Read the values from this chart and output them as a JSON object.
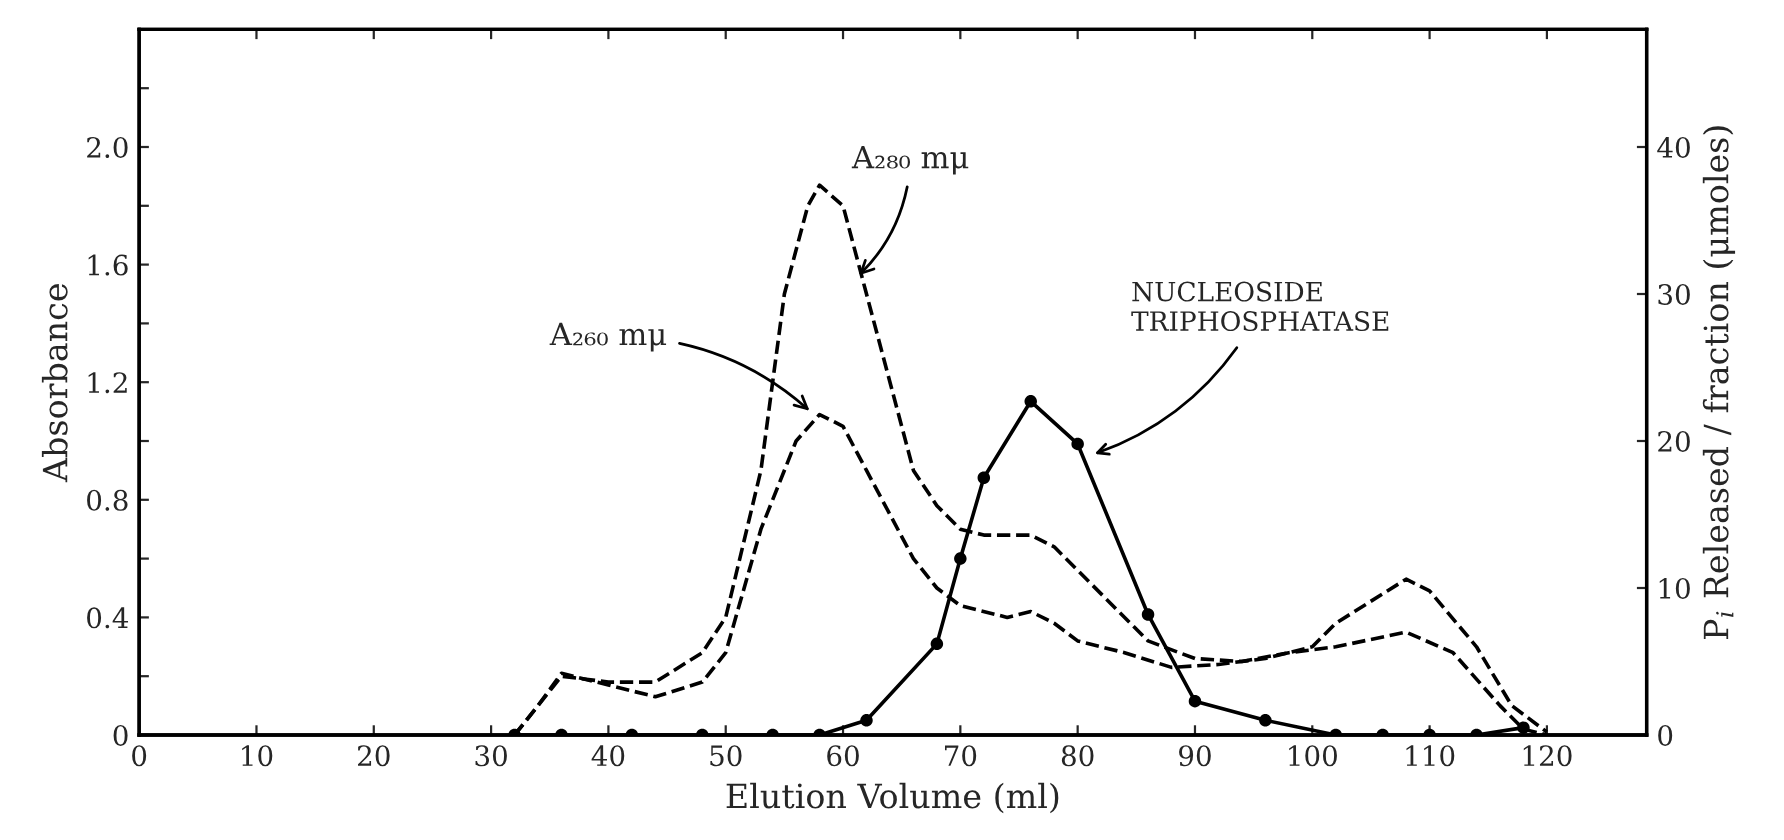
{
  "chart_data": {
    "type": "line",
    "xlabel": "Elution Volume (ml)",
    "ylabel": "Absorbance",
    "y2label": "P$_{i}$ Released / fraction (μmoles)",
    "xlim": [
      0,
      128.5
    ],
    "xticks": [
      0,
      10,
      20,
      30,
      40,
      50,
      60,
      70,
      80,
      90,
      100,
      110,
      120
    ],
    "ylim": [
      0,
      2.4
    ],
    "yticks": [
      0,
      {
        "value": 0.2,
        "label": null
      },
      0.4,
      {
        "value": 0.6,
        "label": null
      },
      0.8,
      {
        "value": 1.0,
        "label": null
      },
      1.2,
      {
        "value": 1.4,
        "label": null
      },
      1.6,
      {
        "value": 1.8,
        "label": null
      },
      {
        "value": 2.0,
        "label": "2.0"
      },
      {
        "value": 2.2,
        "label": null
      }
    ],
    "y2lim": [
      0,
      48
    ],
    "y2ticks": [
      0,
      10,
      20,
      30,
      40
    ],
    "grid": false,
    "legend": false,
    "series": [
      {
        "color": "#000000",
        "line_style": "dashed",
        "marker": "none",
        "x": [
          32,
          34,
          36,
          40,
          44,
          48,
          50,
          53,
          55,
          57,
          58,
          60,
          62,
          64,
          66,
          68,
          70,
          72,
          76,
          78,
          82,
          86,
          90,
          94,
          98,
          102,
          108,
          112,
          116,
          118,
          120
        ],
        "values": [
          0,
          0.1,
          0.2,
          0.18,
          0.18,
          0.28,
          0.4,
          0.9,
          1.5,
          1.8,
          1.87,
          1.8,
          1.5,
          1.2,
          0.9,
          0.78,
          0.7,
          0.68,
          0.68,
          0.64,
          0.48,
          0.32,
          0.26,
          0.25,
          0.28,
          0.3,
          0.35,
          0.28,
          0.1,
          0.02,
          0
        ]
      },
      {
        "color": "#000000",
        "line_style": "dashed",
        "marker": "none",
        "x": [
          32,
          34,
          36,
          40,
          44,
          48,
          50,
          53,
          56,
          58,
          60,
          62,
          64,
          66,
          68,
          70,
          74,
          76,
          78,
          80,
          84,
          88,
          92,
          96,
          100,
          102,
          106,
          108,
          110,
          114,
          117,
          120
        ],
        "values": [
          0,
          0.1,
          0.21,
          0.17,
          0.13,
          0.18,
          0.28,
          0.7,
          1.0,
          1.09,
          1.05,
          0.9,
          0.75,
          0.6,
          0.5,
          0.44,
          0.4,
          0.42,
          0.38,
          0.32,
          0.28,
          0.23,
          0.24,
          0.26,
          0.3,
          0.38,
          0.48,
          0.53,
          0.49,
          0.3,
          0.1,
          0.01
        ]
      },
      {
        "color": "#000000",
        "line_style": "solid",
        "marker": "circle",
        "axis": "y2",
        "x": [
          32,
          36,
          42,
          48,
          54,
          58,
          62,
          68,
          70,
          72,
          76,
          80,
          86,
          90,
          96,
          102,
          106,
          110,
          114,
          118
        ],
        "values": [
          0,
          0,
          0,
          0,
          0,
          0,
          1,
          6.2,
          12,
          17.5,
          22.7,
          19.8,
          8.2,
          2.3,
          1,
          0,
          0,
          0,
          0,
          0.5
        ]
      }
    ],
    "annotations": [
      {
        "text": "A₂₈₀ mμ",
        "x": 61,
        "y": 1.55
      },
      {
        "text": "A₂₆₀ mμ",
        "x": 57.5,
        "y": 1.09
      },
      {
        "text": "NUCLEOSIDE\nTRIPHOSPHATASE",
        "x": 81,
        "y": 0.95
      }
    ]
  }
}
